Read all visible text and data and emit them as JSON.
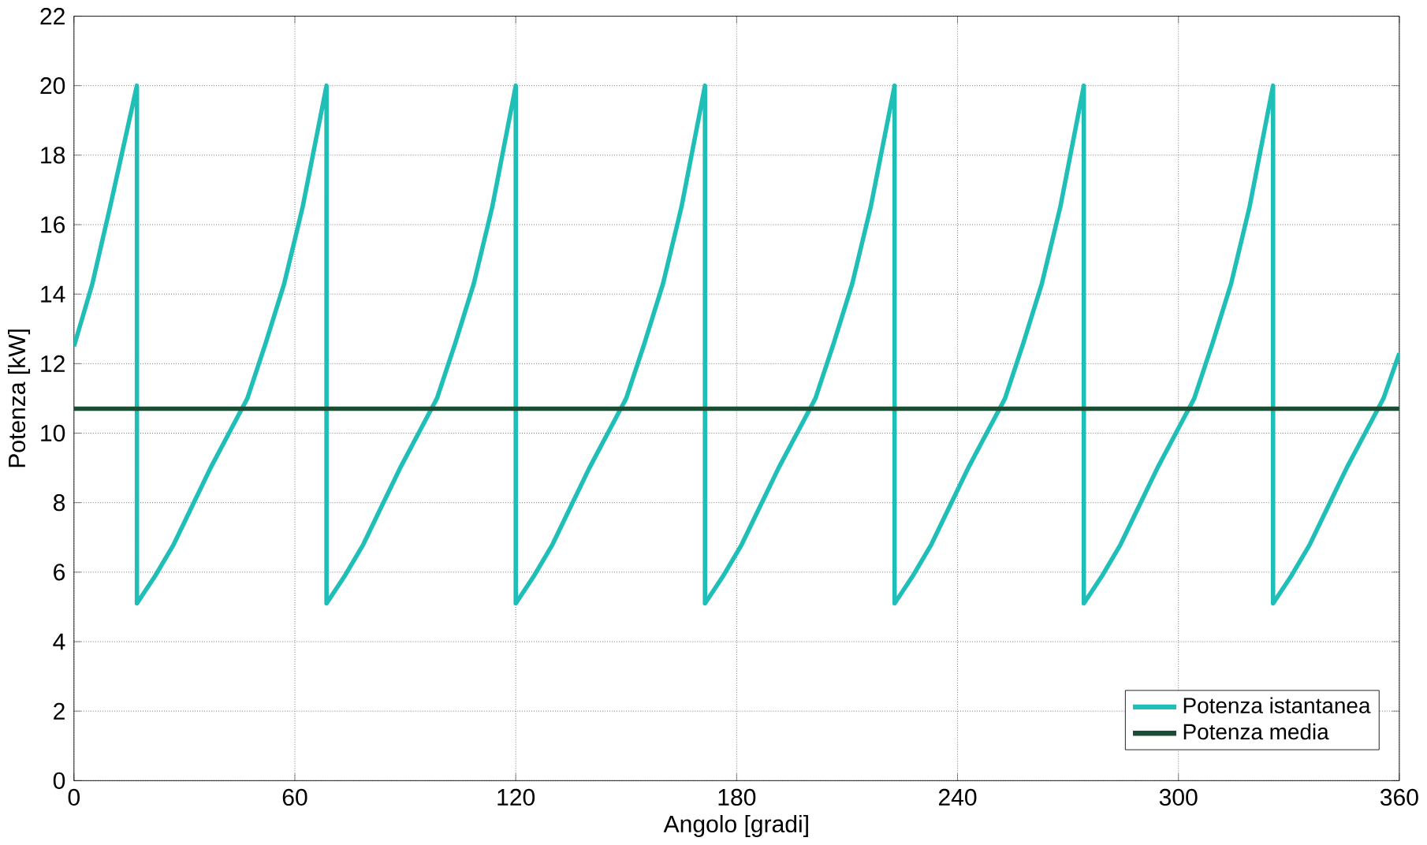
{
  "chart_data": {
    "type": "line",
    "xlabel": "Angolo [gradi]",
    "ylabel": "Potenza [kW]",
    "xlim": [
      0,
      360
    ],
    "ylim": [
      0,
      22
    ],
    "xticks": [
      0,
      60,
      120,
      180,
      240,
      300,
      360
    ],
    "yticks": [
      0,
      2,
      4,
      6,
      8,
      10,
      12,
      14,
      16,
      18,
      20,
      22
    ],
    "grid": true,
    "legend": "bottom right",
    "series": [
      {
        "name": "Potenza istantanea",
        "color": "#1fbfb8",
        "x": [
          0,
          5,
          10,
          17.1,
          17.1,
          22.1,
          27.1,
          32.1,
          37.1,
          42.1,
          47.1,
          52.1,
          57.1,
          62.1,
          68.6,
          68.6,
          73.6,
          78.6,
          83.6,
          88.6,
          93.6,
          98.6,
          103.6,
          108.6,
          113.6,
          120,
          120,
          125,
          130,
          135,
          140,
          145,
          150,
          155,
          160,
          165,
          171.4,
          171.4,
          176.4,
          181.4,
          186.4,
          191.4,
          196.4,
          201.4,
          206.4,
          211.4,
          216.4,
          222.9,
          222.9,
          227.9,
          232.9,
          237.9,
          242.9,
          247.9,
          252.9,
          257.9,
          262.9,
          267.9,
          274.3,
          274.3,
          279.3,
          284.3,
          289.3,
          294.3,
          299.3,
          304.3,
          309.3,
          314.3,
          319.3,
          325.7,
          325.7,
          330.7,
          335.7,
          340.7,
          345.7,
          350.7,
          355.7,
          360
        ],
        "values": [
          12.5,
          14.3,
          16.6,
          20,
          5.1,
          5.9,
          6.8,
          7.9,
          9.0,
          10.0,
          11.0,
          12.6,
          14.3,
          16.5,
          20,
          5.1,
          5.9,
          6.8,
          7.9,
          9.0,
          10.0,
          11.0,
          12.6,
          14.3,
          16.5,
          20,
          5.1,
          5.9,
          6.8,
          7.9,
          9.0,
          10.0,
          11.0,
          12.6,
          14.3,
          16.5,
          20,
          5.1,
          5.9,
          6.8,
          7.9,
          9.0,
          10.0,
          11.0,
          12.6,
          14.3,
          16.5,
          20,
          5.1,
          5.9,
          6.8,
          7.9,
          9.0,
          10.0,
          11.0,
          12.6,
          14.3,
          16.5,
          20,
          5.1,
          5.9,
          6.8,
          7.9,
          9.0,
          10.0,
          11.0,
          12.6,
          14.3,
          16.5,
          20,
          5.1,
          5.9,
          6.8,
          7.9,
          9.0,
          10.0,
          11.0,
          12.3
        ]
      },
      {
        "name": "Potenza media",
        "color": "#1b4d34",
        "x": [
          0,
          360
        ],
        "values": [
          10.7,
          10.7
        ]
      }
    ]
  }
}
